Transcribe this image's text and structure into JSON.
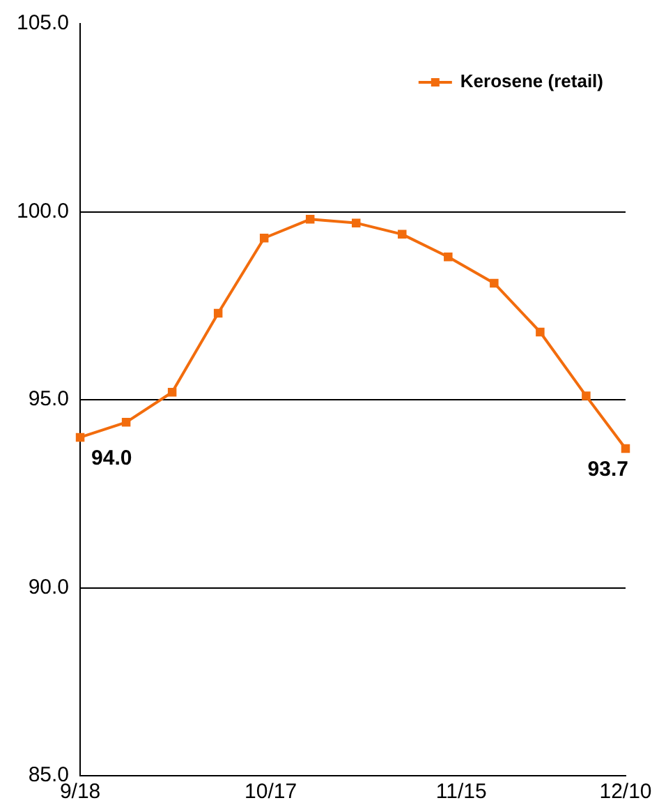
{
  "chart_data": {
    "type": "line",
    "x": [
      "--09-18",
      "--09-25",
      "--10-02",
      "--10-09",
      "--10-16",
      "--10-23",
      "--10-30",
      "--11-06",
      "--11-13",
      "--11-20",
      "--11-27",
      "--12-04",
      "--12-10"
    ],
    "series": [
      {
        "name": "Kerosene (retail)",
        "color": "#f26c0d",
        "values": [
          94.0,
          94.4,
          95.2,
          97.3,
          99.3,
          99.8,
          99.7,
          99.4,
          98.8,
          98.1,
          96.8,
          95.1,
          93.7
        ],
        "value_labels": [
          "94.0",
          null,
          null,
          null,
          null,
          null,
          null,
          null,
          null,
          null,
          null,
          null,
          "93.7"
        ]
      }
    ],
    "xlim": [
      "--09-18",
      "--12-10"
    ],
    "xticks": [
      {
        "value": "--09-18",
        "label": "9/18"
      },
      {
        "value": "--10-17",
        "label": "10/17"
      },
      {
        "value": "--11-15",
        "label": "11/15"
      },
      {
        "value": "--12-10",
        "label": "12/10"
      }
    ],
    "ylim": [
      85,
      105
    ],
    "yticks": [
      {
        "value": 85,
        "label": "85.0"
      },
      {
        "value": 90,
        "label": "90.0"
      },
      {
        "value": 95,
        "label": "95.0"
      },
      {
        "value": 100,
        "label": "100.0"
      },
      {
        "value": 105,
        "label": "105.0"
      }
    ],
    "grid": "y",
    "legend": "top right",
    "marker": "square",
    "line_style": "solid"
  }
}
